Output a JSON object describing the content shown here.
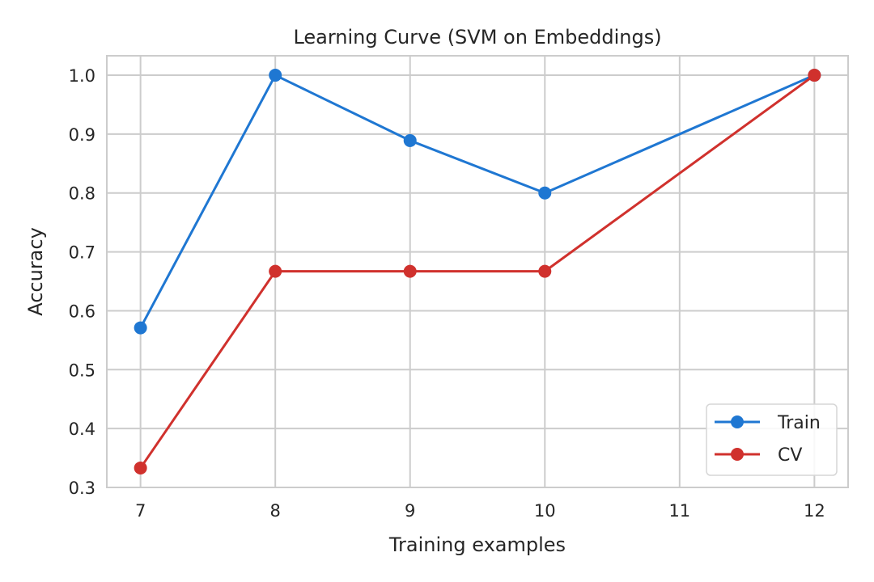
{
  "chart_data": {
    "type": "line",
    "title": "Learning Curve (SVM on Embeddings)",
    "xlabel": "Training examples",
    "ylabel": "Accuracy",
    "x": [
      7,
      8,
      9,
      10,
      12
    ],
    "xticks": [
      "7",
      "8",
      "9",
      "10",
      "11",
      "12"
    ],
    "xlim": [
      6.75,
      12.25
    ],
    "ylim": [
      0.3,
      1.033
    ],
    "yticks": [
      "0.3",
      "0.4",
      "0.5",
      "0.6",
      "0.7",
      "0.8",
      "0.9",
      "1.0"
    ],
    "grid": true,
    "legend_position": "bottom-right",
    "series": [
      {
        "name": "Train",
        "color": "#1f77d2",
        "values": [
          0.571,
          1.0,
          0.889,
          0.8,
          1.0
        ]
      },
      {
        "name": "CV",
        "color": "#d0312d",
        "values": [
          0.333,
          0.667,
          0.667,
          0.667,
          1.0
        ]
      }
    ]
  }
}
